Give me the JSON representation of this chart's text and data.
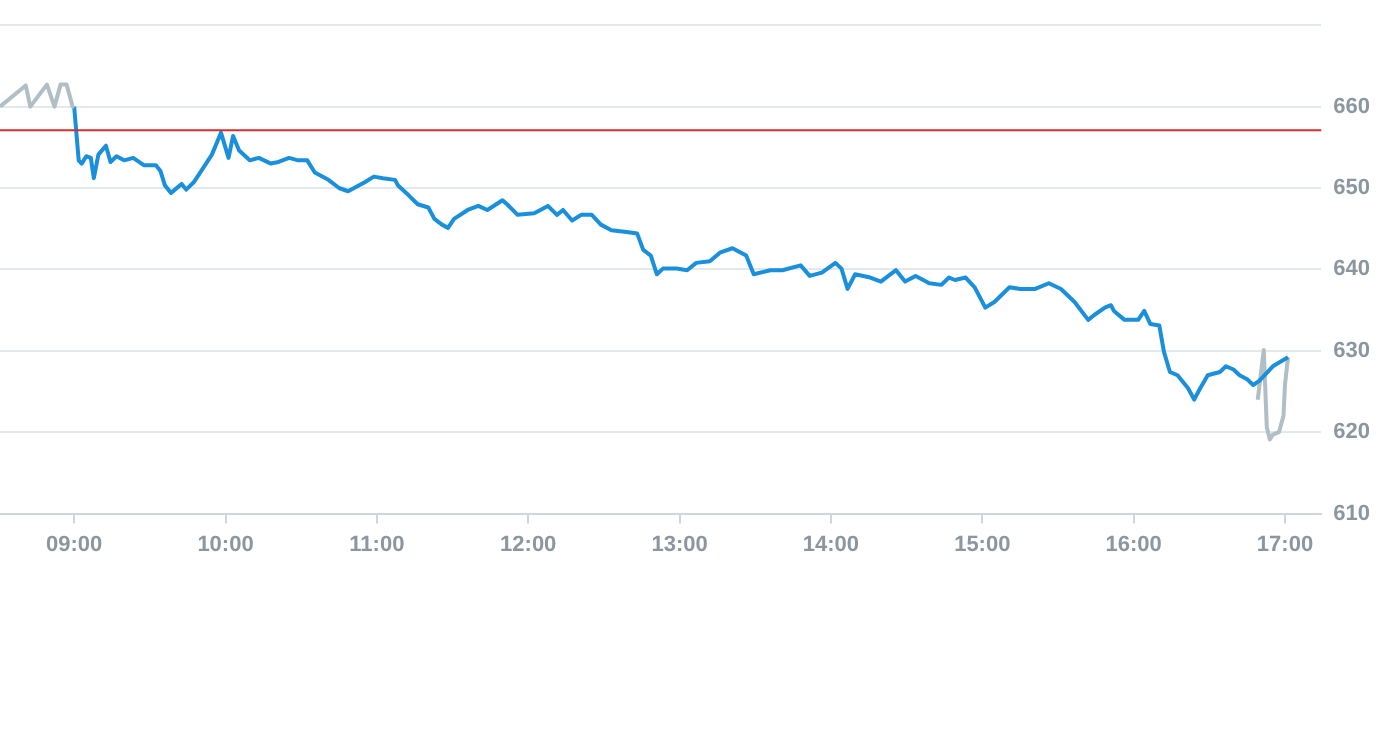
{
  "chart_data": {
    "type": "line",
    "xlim": [
      8.51,
      17.24
    ],
    "xticks": [
      {
        "value": 9,
        "label": "09:00"
      },
      {
        "value": 10,
        "label": "10:00"
      },
      {
        "value": 11,
        "label": "11:00"
      },
      {
        "value": 12,
        "label": "12:00"
      },
      {
        "value": 13,
        "label": "13:00"
      },
      {
        "value": 14,
        "label": "14:00"
      },
      {
        "value": 15,
        "label": "15:00"
      },
      {
        "value": 16,
        "label": "16:00"
      },
      {
        "value": 17,
        "label": "17:00"
      }
    ],
    "ylim": [
      610,
      670
    ],
    "yticks": [
      610,
      620,
      630,
      640,
      650,
      660,
      {
        "value": 670,
        "label": null
      }
    ],
    "grid": "y",
    "legend": false,
    "marker": "none",
    "line_style": "solid",
    "ref_lines": [
      {
        "axis": "y",
        "value": 657.1,
        "color": "#d32f2f"
      }
    ],
    "series": [
      {
        "color": "#b0bec5",
        "x": [
          8.51,
          8.68,
          8.71,
          8.82,
          8.87,
          8.91,
          8.95,
          8.99,
          9.0
        ],
        "values": [
          660.0,
          662.6,
          660.0,
          662.7,
          660.0,
          662.7,
          662.7,
          660.0,
          660.0
        ]
      },
      {
        "color": "#1a8fdc",
        "x": [
          9.0,
          9.03,
          9.05,
          9.08,
          9.11,
          9.13,
          9.16,
          9.21,
          9.24,
          9.28,
          9.33,
          9.39,
          9.46,
          9.54,
          9.57,
          9.6,
          9.64,
          9.71,
          9.74,
          9.79,
          9.84,
          9.91,
          9.97,
          10.02,
          10.05,
          10.09,
          10.16,
          10.22,
          10.3,
          10.35,
          10.42,
          10.48,
          10.54,
          10.59,
          10.68,
          10.75,
          10.81,
          10.88,
          10.92,
          10.98,
          11.04,
          11.12,
          11.14,
          11.21,
          11.27,
          11.34,
          11.38,
          11.43,
          11.47,
          11.51,
          11.6,
          11.67,
          11.73,
          11.83,
          11.86,
          11.93,
          12.04,
          12.13,
          12.19,
          12.23,
          12.29,
          12.35,
          12.42,
          12.48,
          12.55,
          12.65,
          12.72,
          12.76,
          12.81,
          12.85,
          12.89,
          12.98,
          13.05,
          13.11,
          13.2,
          13.27,
          13.35,
          13.44,
          13.49,
          13.6,
          13.68,
          13.8,
          13.86,
          13.94,
          14.03,
          14.07,
          14.11,
          14.16,
          14.26,
          14.33,
          14.43,
          14.49,
          14.56,
          14.65,
          14.73,
          14.78,
          14.82,
          14.89,
          14.95,
          15.02,
          15.08,
          15.18,
          15.25,
          15.35,
          15.44,
          15.52,
          15.61,
          15.7,
          15.74,
          15.81,
          15.85,
          15.87,
          15.94,
          16.03,
          16.07,
          16.11,
          16.17,
          16.2,
          16.24,
          16.29,
          16.36,
          16.4,
          16.44,
          16.49,
          16.57,
          16.61,
          16.66,
          16.7,
          16.75,
          16.79,
          16.83,
          16.92,
          17.02
        ],
        "values": [
          660.0,
          653.4,
          653.0,
          653.9,
          653.7,
          651.2,
          654.1,
          655.2,
          653.2,
          653.9,
          653.4,
          653.7,
          652.8,
          652.8,
          652.1,
          650.3,
          649.4,
          650.5,
          649.8,
          650.7,
          652.1,
          654.1,
          656.8,
          653.7,
          656.4,
          654.6,
          653.4,
          653.7,
          653.0,
          653.2,
          653.7,
          653.4,
          653.4,
          651.9,
          651.0,
          650.0,
          649.6,
          650.3,
          650.7,
          651.4,
          651.2,
          651.0,
          650.3,
          649.1,
          648.0,
          647.6,
          646.2,
          645.5,
          645.1,
          646.2,
          647.3,
          647.8,
          647.3,
          648.5,
          648.0,
          646.7,
          646.9,
          647.8,
          646.7,
          647.3,
          646.0,
          646.7,
          646.7,
          645.5,
          644.8,
          644.6,
          644.4,
          642.4,
          641.7,
          639.4,
          640.1,
          640.1,
          639.9,
          640.8,
          641.0,
          642.1,
          642.6,
          641.7,
          639.4,
          639.9,
          639.9,
          640.5,
          639.2,
          639.6,
          640.8,
          640.1,
          637.6,
          639.4,
          639.0,
          638.5,
          639.9,
          638.5,
          639.2,
          638.3,
          638.1,
          639.0,
          638.7,
          639.0,
          637.8,
          635.3,
          636.0,
          637.8,
          637.6,
          637.6,
          638.3,
          637.6,
          636.0,
          633.8,
          634.4,
          635.3,
          635.6,
          634.9,
          633.8,
          633.8,
          634.9,
          633.3,
          633.1,
          629.9,
          627.4,
          627.0,
          625.4,
          624.0,
          625.4,
          627.0,
          627.4,
          628.1,
          627.7,
          627.0,
          626.5,
          625.8,
          626.3,
          628.1,
          629.2
        ]
      },
      {
        "color": "#b0bec5",
        "x": [
          16.82,
          16.86,
          16.88,
          16.9,
          16.92,
          16.96,
          16.99,
          17.0,
          17.02
        ],
        "values": [
          624.0,
          630.1,
          620.6,
          619.1,
          619.7,
          620.0,
          622.0,
          625.8,
          629.2
        ]
      }
    ]
  }
}
